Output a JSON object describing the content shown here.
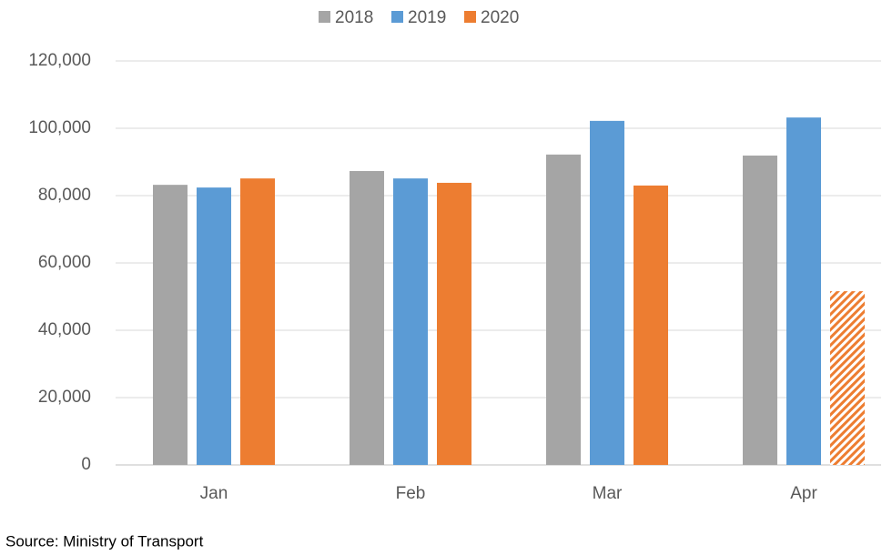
{
  "chart_data": {
    "type": "bar",
    "categories": [
      "Jan",
      "Feb",
      "Mar",
      "Apr"
    ],
    "series": [
      {
        "name": "2018",
        "color": "#a5a5a5",
        "values": [
          83200,
          87300,
          92200,
          91900
        ]
      },
      {
        "name": "2019",
        "color": "#5b9bd5",
        "values": [
          82400,
          85100,
          102200,
          103200
        ]
      },
      {
        "name": "2020",
        "color": "#ed7d31",
        "values": [
          85100,
          83800,
          83000,
          51600
        ],
        "hatched": [
          false,
          false,
          false,
          true
        ]
      }
    ],
    "ylim": [
      0,
      120000
    ],
    "yticks": [
      0,
      {
        "value": 20000,
        "label": "20,000"
      },
      {
        "value": 40000,
        "label": "40,000"
      },
      {
        "value": 60000,
        "label": "60,000"
      },
      {
        "value": 80000,
        "label": "80,000"
      },
      {
        "value": 100000,
        "label": "100,000"
      },
      {
        "value": 120000,
        "label": "120,000"
      }
    ],
    "grid": true,
    "legend": "top",
    "source": "Source: Ministry of Transport"
  }
}
